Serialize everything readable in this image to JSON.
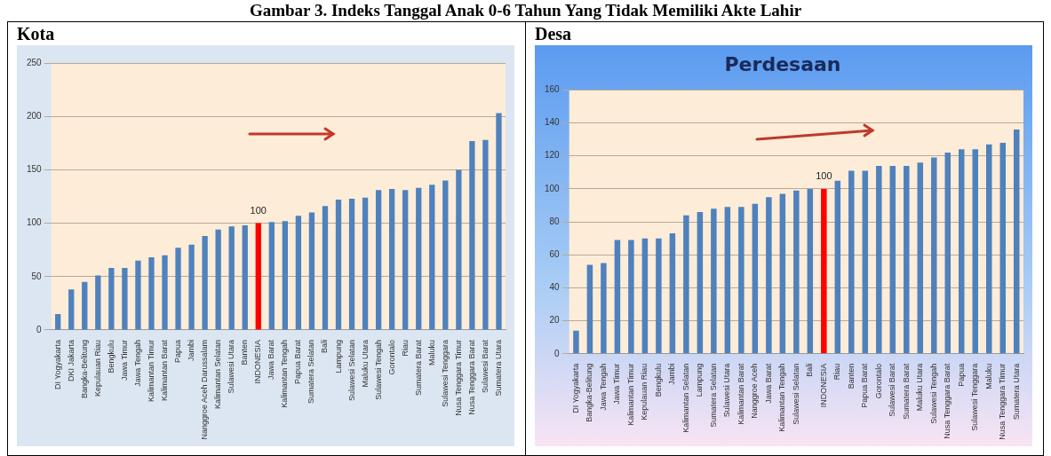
{
  "chart_data": [
    {
      "type": "bar",
      "title": "Kota",
      "annotations": [
        "Gambar 3. Indeks Tanggal Anak 0-6 Tahun Yang Tidak Memiliki Akte Lahir",
        {
          "text": "100",
          "x": "INDONESIA",
          "y": 100
        }
      ],
      "categories": [
        "DI Yogyakarta",
        "DKI Jakarta",
        "Bangka-Belitung",
        "Kepulauan Riau",
        "Bengkulu",
        "Jawa Timur",
        "Jawa Tengah",
        "Kalimantan Timur",
        "Kalimantan Barat",
        "Papua",
        "Jambi",
        "Nanggroe Aceh Darussalam",
        "Kalimantan Selatan",
        "Sulawesi Utara",
        "Banten",
        "INDONESIA",
        "Jawa Barat",
        "Kalimantan Tengah",
        "Papua Barat",
        "Sumatera Selatan",
        "Bali",
        "Lampung",
        "Sulawesi Selatan",
        "Maluku Utara",
        "Sulawesi Tengah",
        "Gorontalo",
        "Riau",
        "Sumatera Barat",
        "Maluku",
        "Sulawesi Tenggara",
        "Nusa Tenggara Timur",
        "Nusa Tenggara Barat",
        "Sulawesi Barat",
        "Sumatera Utara"
      ],
      "values": [
        15,
        38,
        45,
        51,
        58,
        58,
        65,
        68,
        70,
        77,
        80,
        88,
        94,
        97,
        98,
        100,
        101,
        102,
        107,
        110,
        116,
        122,
        123,
        124,
        131,
        132,
        131,
        133,
        136,
        140,
        150,
        177,
        178,
        203
      ],
      "colors": [
        "#4f81bd",
        "#4f81bd",
        "#4f81bd",
        "#4f81bd",
        "#4f81bd",
        "#4f81bd",
        "#4f81bd",
        "#4f81bd",
        "#4f81bd",
        "#4f81bd",
        "#4f81bd",
        "#4f81bd",
        "#4f81bd",
        "#4f81bd",
        "#4f81bd",
        "#ff0000",
        "#4f81bd",
        "#4f81bd",
        "#4f81bd",
        "#4f81bd",
        "#4f81bd",
        "#4f81bd",
        "#4f81bd",
        "#4f81bd",
        "#4f81bd",
        "#4f81bd",
        "#4f81bd",
        "#4f81bd",
        "#4f81bd",
        "#4f81bd",
        "#4f81bd",
        "#4f81bd",
        "#4f81bd",
        "#4f81bd"
      ],
      "ylim": [
        0,
        250
      ],
      "yticks": [
        0,
        50,
        100,
        150,
        200,
        250
      ],
      "grid": "y"
    },
    {
      "type": "bar",
      "title": "Desa",
      "subtitle": "Perdesaan",
      "annotations": [
        {
          "text": "100",
          "x": "INDONESIA",
          "y": 100
        }
      ],
      "categories": [
        "DI Yogyakarta",
        "Bangka-Belitung",
        "Jawa Tengah",
        "Jawa Timur",
        "Kalimantan Timur",
        "Kepulauan Riau",
        "Bengkulu",
        "Jambi",
        "Kalimantan Selatan",
        "Lampung",
        "Sumatera Selatan",
        "Sulawesi Utara",
        "Kalimantan Barat",
        "Nanggroe Aceh",
        "Jawa Barat",
        "Kalimantan Tengah",
        "Sulawesi Selatan",
        "Bali",
        "INDONESIA",
        "Riau",
        "Banten",
        "Papua Barat",
        "Gorontalo",
        "Sulawesi Barat",
        "Sumatera Barat",
        "Maluku Utara",
        "Sulawesi Tengah",
        "Nusa Tenggara Barat",
        "Papua",
        "Sulawesi Tenggara",
        "Maluku",
        "Nusa Tenggara Timur",
        "Sumatera Utara"
      ],
      "values": [
        14,
        54,
        55,
        69,
        69,
        70,
        70,
        73,
        84,
        86,
        88,
        89,
        89,
        91,
        95,
        97,
        99,
        100,
        100,
        105,
        111,
        111,
        114,
        114,
        114,
        116,
        119,
        122,
        124,
        124,
        127,
        128,
        136
      ],
      "colors": [
        "#4f81bd",
        "#4f81bd",
        "#4f81bd",
        "#4f81bd",
        "#4f81bd",
        "#4f81bd",
        "#4f81bd",
        "#4f81bd",
        "#4f81bd",
        "#4f81bd",
        "#4f81bd",
        "#4f81bd",
        "#4f81bd",
        "#4f81bd",
        "#4f81bd",
        "#4f81bd",
        "#4f81bd",
        "#4f81bd",
        "#ff0000",
        "#4f81bd",
        "#4f81bd",
        "#4f81bd",
        "#4f81bd",
        "#4f81bd",
        "#4f81bd",
        "#4f81bd",
        "#4f81bd",
        "#4f81bd",
        "#4f81bd",
        "#4f81bd",
        "#4f81bd",
        "#4f81bd",
        "#4f81bd"
      ],
      "ylim": [
        0,
        160
      ],
      "yticks": [
        0,
        20,
        40,
        60,
        80,
        100,
        120,
        140,
        160
      ],
      "grid": "y"
    }
  ]
}
